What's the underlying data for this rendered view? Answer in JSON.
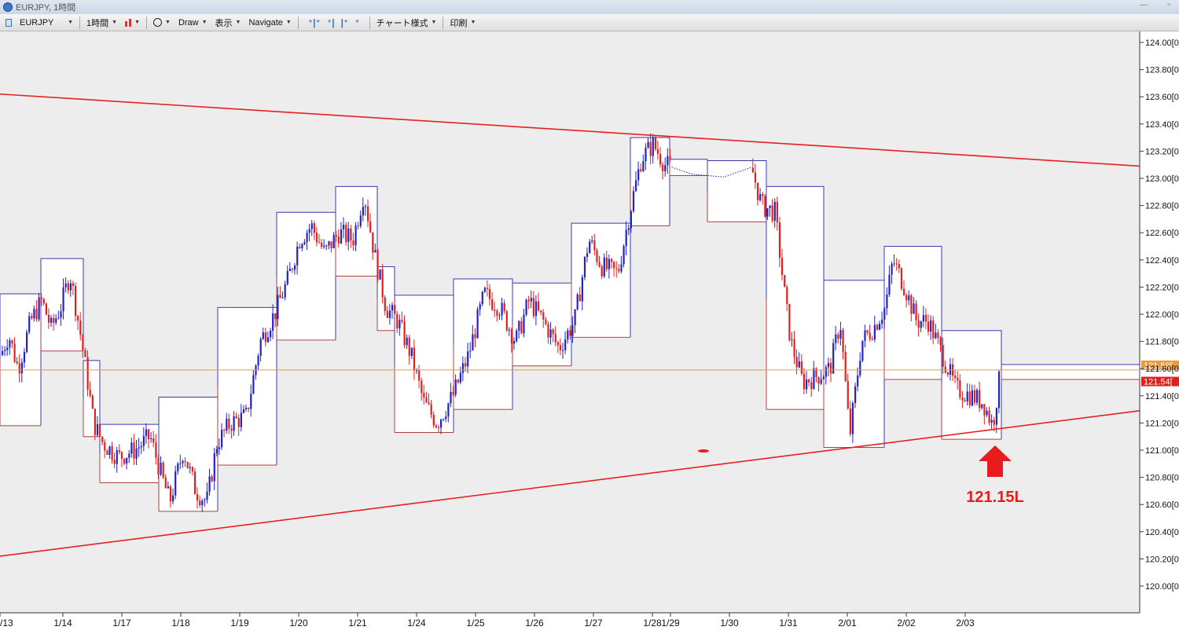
{
  "window": {
    "title": "EURJPY, 1時間"
  },
  "toolbar": {
    "symbol": "EURJPY",
    "timeframe": "1時間",
    "draw": "Draw",
    "display": "表示",
    "navigate": "Navigate",
    "chart_style": "チャート様式",
    "print": "印刷"
  },
  "colors": {
    "bull": "#2222c8",
    "bear": "#e02020",
    "box_high": "#3b3bb0",
    "box_low": "#b04040",
    "trend": "#e62020",
    "current_line": "#e89a3c",
    "arrow": "#e81c1c"
  },
  "chart_data": {
    "type": "candlestick",
    "symbol": "EURJPY",
    "timeframe": "1時間",
    "ylim": [
      119.9,
      124.1
    ],
    "y_ticks": [
      "124.00[0",
      "123.80[0",
      "123.60[0",
      "123.40[0",
      "123.20[0",
      "123.00[0",
      "122.80[0",
      "122.60[0",
      "122.40[0",
      "122.20[0",
      "122.00[0",
      "121.80[0",
      "121.60[0",
      "121.40[0",
      "121.20[0",
      "121.00[0",
      "120.80[0",
      "120.60[0",
      "120.40[0",
      "120.20[0",
      "120.00[0"
    ],
    "y_tick_values": [
      124.0,
      123.8,
      123.6,
      123.4,
      123.2,
      123.0,
      122.8,
      122.6,
      122.4,
      122.2,
      122.0,
      121.8,
      121.6,
      121.4,
      121.2,
      121.0,
      120.8,
      120.6,
      120.4,
      120.2,
      120.0
    ],
    "x_labels": [
      "/13",
      "1/14",
      "1/17",
      "1/18",
      "1/19",
      "1/20",
      "1/21",
      "1/24",
      "1/25",
      "1/26",
      "1/27",
      "1/28",
      "1/29",
      "1/30",
      "1/31",
      "2/01",
      "2/02",
      "2/03"
    ],
    "x_label_slots": [
      0,
      80,
      155,
      230,
      305,
      380,
      455,
      530,
      605,
      680,
      755,
      830,
      853,
      928,
      1003,
      1078,
      1153,
      1228
    ],
    "current_price": 121.59,
    "price_tags": [
      {
        "text": "121.59[",
        "value": 121.59,
        "color": "#e89a3c"
      },
      {
        "text": "121.54[",
        "value": 121.54,
        "color": "#e02020"
      }
    ],
    "trendlines": [
      {
        "from": [
          0,
          123.62
        ],
        "to": [
          1450,
          123.09
        ]
      },
      {
        "from": [
          0,
          120.22
        ],
        "to": [
          1450,
          121.29
        ]
      }
    ],
    "session_boxes": [
      {
        "x": [
          0,
          52
        ],
        "high": 122.15,
        "low": 121.18
      },
      {
        "x": [
          52,
          106
        ],
        "high": 122.41,
        "low": 121.73
      },
      {
        "x": [
          106,
          127
        ],
        "high": 121.66,
        "low": 121.1
      },
      {
        "x": [
          127,
          202
        ],
        "high": 121.19,
        "low": 120.76
      },
      {
        "x": [
          202,
          277
        ],
        "high": 121.39,
        "low": 120.55
      },
      {
        "x": [
          277,
          352
        ],
        "high": 122.05,
        "low": 120.89
      },
      {
        "x": [
          352,
          427
        ],
        "high": 122.75,
        "low": 121.81
      },
      {
        "x": [
          427,
          480
        ],
        "high": 122.94,
        "low": 122.28
      },
      {
        "x": [
          480,
          502
        ],
        "high": 122.35,
        "low": 121.88
      },
      {
        "x": [
          502,
          577
        ],
        "high": 122.14,
        "low": 121.13
      },
      {
        "x": [
          577,
          652
        ],
        "high": 122.26,
        "low": 121.3
      },
      {
        "x": [
          652,
          727
        ],
        "high": 122.23,
        "low": 121.62
      },
      {
        "x": [
          727,
          802
        ],
        "high": 122.67,
        "low": 121.83
      },
      {
        "x": [
          802,
          852
        ],
        "high": 123.3,
        "low": 122.65
      },
      {
        "x": [
          852,
          900
        ],
        "high": 123.14,
        "low": 123.02
      },
      {
        "x": [
          900,
          975
        ],
        "high": 123.13,
        "low": 122.68
      },
      {
        "x": [
          975,
          1048
        ],
        "high": 122.94,
        "low": 121.3
      },
      {
        "x": [
          1048,
          1125
        ],
        "high": 122.25,
        "low": 121.02
      },
      {
        "x": [
          1125,
          1198
        ],
        "high": 122.5,
        "low": 121.52
      },
      {
        "x": [
          1198,
          1274
        ],
        "high": 121.88,
        "low": 121.08
      },
      {
        "x": [
          1274,
          1450
        ],
        "high": 121.63,
        "low": 121.52
      }
    ],
    "path_points": [
      [
        0,
        121.7
      ],
      [
        10,
        121.85
      ],
      [
        22,
        121.6
      ],
      [
        38,
        121.95
      ],
      [
        52,
        122.1
      ],
      [
        64,
        121.9
      ],
      [
        76,
        122.05
      ],
      [
        88,
        122.3
      ],
      [
        100,
        121.9
      ],
      [
        108,
        121.6
      ],
      [
        118,
        121.2
      ],
      [
        130,
        121.05
      ],
      [
        150,
        120.95
      ],
      [
        170,
        121.0
      ],
      [
        190,
        121.1
      ],
      [
        205,
        120.8
      ],
      [
        215,
        120.62
      ],
      [
        232,
        121.0
      ],
      [
        248,
        120.7
      ],
      [
        262,
        120.62
      ],
      [
        275,
        121.05
      ],
      [
        292,
        121.2
      ],
      [
        312,
        121.25
      ],
      [
        330,
        121.8
      ],
      [
        348,
        122.0
      ],
      [
        365,
        122.25
      ],
      [
        380,
        122.55
      ],
      [
        395,
        122.65
      ],
      [
        412,
        122.45
      ],
      [
        430,
        122.6
      ],
      [
        448,
        122.55
      ],
      [
        462,
        122.9
      ],
      [
        475,
        122.45
      ],
      [
        490,
        122.05
      ],
      [
        505,
        121.95
      ],
      [
        522,
        121.7
      ],
      [
        538,
        121.35
      ],
      [
        555,
        121.2
      ],
      [
        575,
        121.4
      ],
      [
        595,
        121.7
      ],
      [
        615,
        122.15
      ],
      [
        635,
        122.05
      ],
      [
        655,
        121.8
      ],
      [
        672,
        122.1
      ],
      [
        690,
        121.95
      ],
      [
        710,
        121.75
      ],
      [
        730,
        121.95
      ],
      [
        748,
        122.55
      ],
      [
        765,
        122.35
      ],
      [
        785,
        122.3
      ],
      [
        800,
        122.75
      ],
      [
        815,
        123.15
      ],
      [
        830,
        123.25
      ],
      [
        845,
        123.1
      ],
      [
        880,
        123.03
      ],
      [
        920,
        123.01
      ],
      [
        955,
        123.08
      ],
      [
        968,
        122.8
      ],
      [
        985,
        122.75
      ],
      [
        998,
        122.1
      ],
      [
        1005,
        121.8
      ],
      [
        1020,
        121.5
      ],
      [
        1040,
        121.55
      ],
      [
        1055,
        121.6
      ],
      [
        1068,
        121.95
      ],
      [
        1080,
        121.1
      ],
      [
        1095,
        121.8
      ],
      [
        1110,
        121.9
      ],
      [
        1125,
        122.05
      ],
      [
        1135,
        122.4
      ],
      [
        1150,
        122.2
      ],
      [
        1165,
        121.95
      ],
      [
        1180,
        121.95
      ],
      [
        1198,
        121.7
      ],
      [
        1215,
        121.45
      ],
      [
        1235,
        121.4
      ],
      [
        1250,
        121.35
      ],
      [
        1262,
        121.18
      ],
      [
        1272,
        121.59
      ]
    ],
    "annotation": {
      "text": "121.15L",
      "value": 121.15
    }
  }
}
